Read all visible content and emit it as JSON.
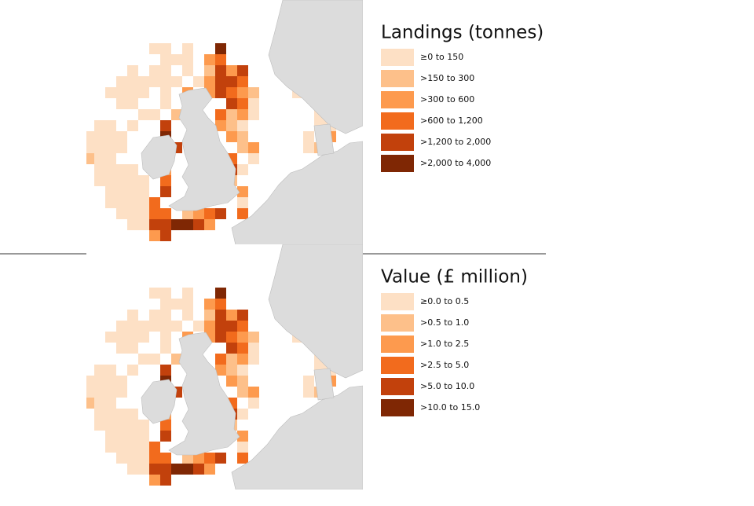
{
  "panels": [
    {
      "title": "Landings (tonnes)",
      "legend": [
        {
          "label": "≥0 to 150",
          "color": "#fde0c5"
        },
        {
          "label": ">150 to 300",
          "color": "#fdc08a"
        },
        {
          "label": ">300 to 600",
          "color": "#fd9a4e"
        },
        {
          "label": ">600 to 1,200",
          "color": "#f26b1d"
        },
        {
          "label": ">1,200 to 2,000",
          "color": "#c2410c"
        },
        {
          "label": ">2,000 to 4,000",
          "color": "#7f2704"
        }
      ]
    },
    {
      "title": "Value (£ million)",
      "legend": [
        {
          "label": "≥0.0 to 0.5",
          "color": "#fde0c5"
        },
        {
          "label": ">0.5 to 1.0",
          "color": "#fdc08a"
        },
        {
          "label": ">1.0 to 2.5",
          "color": "#fd9a4e"
        },
        {
          "label": ">2.5 to 5.0",
          "color": "#f26b1d"
        },
        {
          "label": ">5.0 to 10.0",
          "color": "#c2410c"
        },
        {
          "label": ">10.0 to 15.0",
          "color": "#7f2704"
        }
      ]
    }
  ]
}
